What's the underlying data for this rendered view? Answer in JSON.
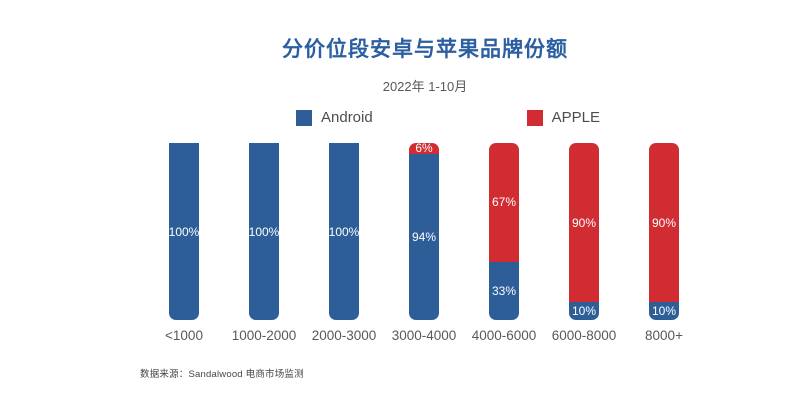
{
  "page": {
    "background": "#ffffff"
  },
  "header": {
    "title": "分价位段安卓与苹果品牌份额",
    "subtitle": "2022年 1-10月",
    "title_color": "#2b5fa1"
  },
  "legend": [
    {
      "label": "Android",
      "color": "#2d5e97"
    },
    {
      "label": "APPLE",
      "color": "#d02c32"
    }
  ],
  "chart_data": {
    "type": "bar",
    "stacked": true,
    "orientation": "vertical",
    "title": "分价位段安卓与苹果品牌份额",
    "subtitle": "2022年 1-10月",
    "categories": [
      "<1000",
      "1000-2000",
      "2000-3000",
      "3000-4000",
      "4000-6000",
      "6000-8000",
      "8000+"
    ],
    "series": [
      {
        "name": "Android",
        "color": "#2d5e97",
        "values": [
          100,
          100,
          100,
          94,
          33,
          10,
          10
        ]
      },
      {
        "name": "APPLE",
        "color": "#d02c32",
        "values": [
          0,
          0,
          0,
          6,
          67,
          90,
          90
        ]
      }
    ],
    "unit": "%",
    "xlabel": "",
    "ylabel": "",
    "ylim": [
      0,
      100
    ],
    "grid": false,
    "legend_position": "top",
    "value_labels_inside_segments": true
  },
  "footer": {
    "source": "数据来源：Sandalwood 电商市场监测"
  }
}
